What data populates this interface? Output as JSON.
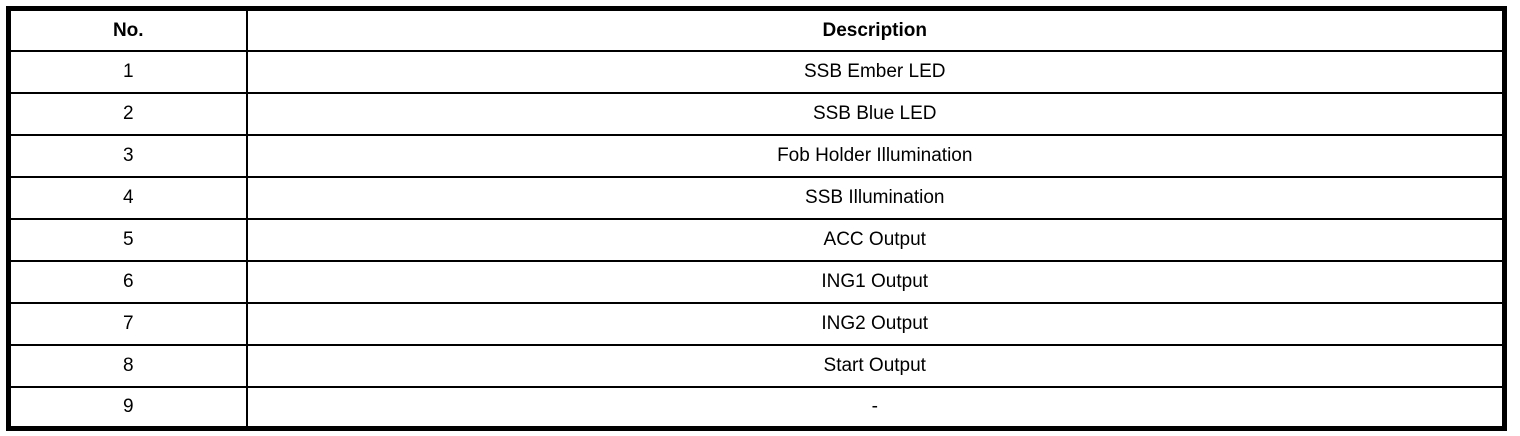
{
  "page": {
    "background_color": "#ffffff",
    "border_color": "#000000",
    "text_color": "#000000"
  },
  "table": {
    "columns": [
      {
        "label": "No."
      },
      {
        "label": "Description"
      }
    ],
    "rows": [
      {
        "no": "1",
        "description": "SSB Ember LED"
      },
      {
        "no": "2",
        "description": "SSB Blue LED"
      },
      {
        "no": "3",
        "description": "Fob Holder Illumination"
      },
      {
        "no": "4",
        "description": "SSB Illumination"
      },
      {
        "no": "5",
        "description": "ACC Output"
      },
      {
        "no": "6",
        "description": "ING1 Output"
      },
      {
        "no": "7",
        "description": "ING2 Output"
      },
      {
        "no": "8",
        "description": "Start Output"
      },
      {
        "no": "9",
        "description": "-"
      }
    ]
  }
}
